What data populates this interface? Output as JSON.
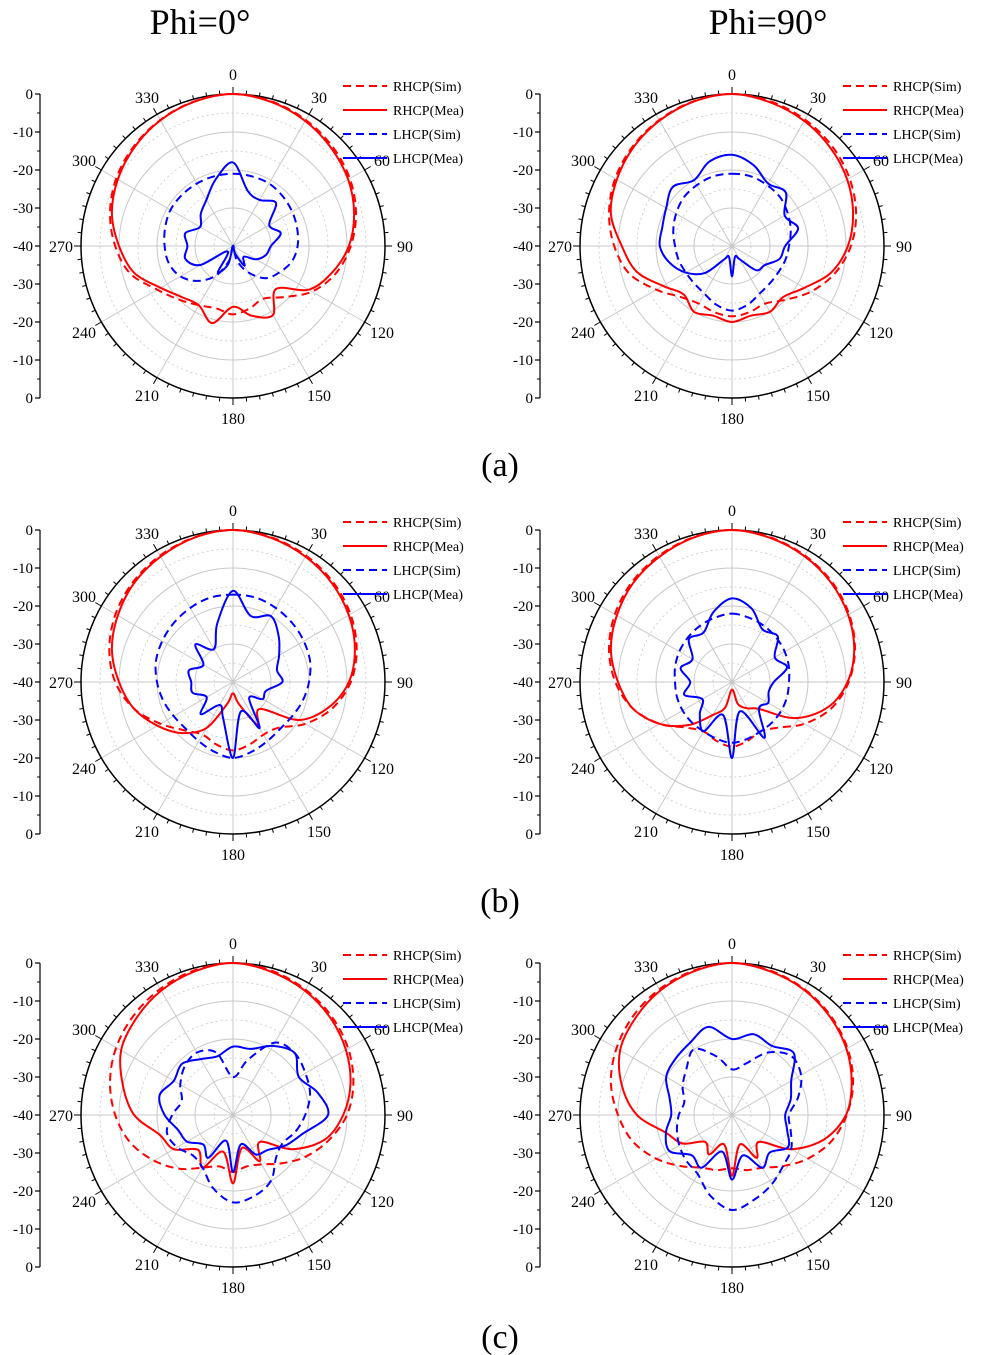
{
  "column_titles": [
    "Phi=0°",
    "Phi=90°"
  ],
  "captions": [
    "(a)",
    "(b)",
    "(c)"
  ],
  "legend_entries": [
    "RHCP(Sim)",
    "RHCP(Mea)",
    "LHCP(Sim)",
    "LHCP(Mea)"
  ],
  "colors": {
    "rhcp": "#ff0000",
    "lhcp": "#0000ff",
    "grid": "#c8c8c8",
    "frame": "#000000"
  },
  "angle_labels": [
    "0",
    "30",
    "60",
    "90",
    "120",
    "150",
    "180",
    "210",
    "240",
    "270",
    "300",
    "330"
  ],
  "radial_tick_labels": [
    "0",
    "-10",
    "-20",
    "-30",
    "-40",
    "-30",
    "-20",
    "-10",
    "0"
  ],
  "chart_data": [
    {
      "type": "polar",
      "panel": "(a)",
      "subtitle": "Phi=0°",
      "rlim": [
        -40,
        0
      ],
      "grid": true,
      "legend": "top-right",
      "theta": [
        0,
        15,
        30,
        45,
        60,
        75,
        90,
        105,
        120,
        135,
        150,
        165,
        180,
        195,
        210,
        225,
        240,
        255,
        270,
        285,
        300,
        315,
        330,
        345,
        360
      ],
      "series": [
        {
          "name": "RHCP(Sim)",
          "style": "dashed",
          "color": "#ff0000",
          "values": [
            0,
            -0.6,
            -1.7,
            -3,
            -4.5,
            -6.5,
            -9,
            -12,
            -16,
            -21,
            -24,
            -23,
            -22,
            -23,
            -22,
            -20,
            -17,
            -12,
            -9,
            -6.5,
            -4.5,
            -3,
            -1.7,
            -0.6,
            0
          ]
        },
        {
          "name": "RHCP(Mea)",
          "style": "solid",
          "color": "#ff0000",
          "values": [
            0,
            -0.8,
            -2,
            -3.5,
            -5,
            -7,
            -9.5,
            -13,
            -17,
            -24,
            -19,
            -21,
            -24,
            -19,
            -22,
            -21,
            -18,
            -13,
            -10,
            -7,
            -5,
            -3.3,
            -1.8,
            -0.7,
            0
          ]
        },
        {
          "name": "LHCP(Sim)",
          "style": "dashed",
          "color": "#0000ff",
          "values": [
            -21,
            -21,
            -21,
            -21.5,
            -22,
            -22.5,
            -23,
            -24,
            -26,
            -28,
            -32,
            -36,
            -40,
            -36,
            -31,
            -27,
            -24,
            -22.5,
            -22,
            -21.5,
            -21,
            -21,
            -21,
            -21,
            -21
          ]
        },
        {
          "name": "LHCP(Mea)",
          "style": "solid",
          "color": "#0000ff",
          "values": [
            -18,
            -25,
            -26,
            -24,
            -29,
            -27,
            -30,
            -31,
            -33,
            -36,
            -34,
            -38,
            -40,
            -35,
            -32,
            -38,
            -30,
            -27,
            -28,
            -27,
            -30,
            -28,
            -26,
            -22,
            -18
          ]
        }
      ]
    },
    {
      "type": "polar",
      "panel": "(a)",
      "subtitle": "Phi=90°",
      "rlim": [
        -40,
        0
      ],
      "grid": true,
      "legend": "top-right",
      "theta": [
        0,
        15,
        30,
        45,
        60,
        75,
        90,
        105,
        120,
        135,
        150,
        165,
        180,
        195,
        210,
        225,
        240,
        255,
        270,
        285,
        300,
        315,
        330,
        345,
        360
      ],
      "series": [
        {
          "name": "RHCP(Sim)",
          "style": "dashed",
          "color": "#ff0000",
          "values": [
            0,
            -0.6,
            -1.6,
            -2.8,
            -4.3,
            -6.2,
            -8.7,
            -12,
            -16,
            -20,
            -22.5,
            -22,
            -21.5,
            -22,
            -22.5,
            -21,
            -17,
            -12,
            -9,
            -6.5,
            -4.5,
            -3,
            -1.7,
            -0.6,
            0
          ]
        },
        {
          "name": "RHCP(Mea)",
          "style": "solid",
          "color": "#ff0000",
          "values": [
            0,
            -0.9,
            -2,
            -3.4,
            -5,
            -7,
            -9.5,
            -13,
            -18,
            -21,
            -20,
            -21,
            -20,
            -21,
            -20,
            -22,
            -19,
            -14,
            -11,
            -7,
            -5,
            -3.3,
            -1.9,
            -0.7,
            0
          ]
        },
        {
          "name": "LHCP(Sim)",
          "style": "dashed",
          "color": "#0000ff",
          "values": [
            -21,
            -21,
            -21.5,
            -22,
            -23,
            -24,
            -25,
            -25.5,
            -26,
            -26,
            -25.5,
            -24,
            -23,
            -24,
            -25.5,
            -26,
            -26,
            -25.5,
            -25,
            -24,
            -23,
            -22,
            -21.5,
            -21,
            -21
          ]
        },
        {
          "name": "LHCP(Mea)",
          "style": "solid",
          "color": "#0000ff",
          "values": [
            -16,
            -18,
            -21,
            -20,
            -24,
            -22,
            -26,
            -27,
            -30,
            -31,
            -36,
            -37,
            -32,
            -37,
            -36,
            -30,
            -26,
            -23,
            -21,
            -21,
            -20,
            -18,
            -20,
            -17,
            -16
          ]
        }
      ]
    },
    {
      "type": "polar",
      "panel": "(b)",
      "subtitle": "Phi=0°",
      "rlim": [
        -40,
        0
      ],
      "grid": true,
      "legend": "top-right",
      "theta": [
        0,
        15,
        30,
        45,
        60,
        75,
        90,
        105,
        120,
        135,
        150,
        165,
        180,
        195,
        210,
        225,
        240,
        255,
        270,
        285,
        300,
        315,
        330,
        345,
        360
      ],
      "series": [
        {
          "name": "RHCP(Sim)",
          "style": "dashed",
          "color": "#ff0000",
          "values": [
            0,
            -0.6,
            -1.6,
            -2.8,
            -4.3,
            -6.3,
            -9,
            -13,
            -18,
            -23,
            -24,
            -23,
            -22,
            -23,
            -24,
            -22,
            -18,
            -13,
            -9,
            -6.3,
            -4.3,
            -2.8,
            -1.6,
            -0.6,
            0
          ]
        },
        {
          "name": "RHCP(Mea)",
          "style": "solid",
          "color": "#ff0000",
          "values": [
            0,
            -0.8,
            -1.9,
            -3.2,
            -4.8,
            -6.8,
            -9.5,
            -14,
            -20,
            -30,
            -27,
            -34,
            -37,
            -34,
            -26,
            -21,
            -17,
            -13,
            -10,
            -7,
            -5,
            -3.2,
            -1.9,
            -0.7,
            0
          ]
        },
        {
          "name": "LHCP(Sim)",
          "style": "dashed",
          "color": "#0000ff",
          "values": [
            -17,
            -17,
            -17.5,
            -18,
            -18.5,
            -19,
            -20,
            -21,
            -22,
            -22.5,
            -22,
            -21,
            -20,
            -21,
            -22,
            -22.5,
            -22,
            -21,
            -20,
            -19,
            -18.5,
            -18,
            -17.5,
            -17,
            -17
          ]
        },
        {
          "name": "LHCP(Mea)",
          "style": "solid",
          "color": "#0000ff",
          "values": [
            -16,
            -22,
            -20,
            -23,
            -26,
            -28,
            -27,
            -31,
            -31,
            -34,
            -26,
            -32,
            -20,
            -30,
            -33,
            -28,
            -32,
            -29,
            -29,
            -28,
            -31,
            -26,
            -30,
            -24,
            -16
          ]
        }
      ]
    },
    {
      "type": "polar",
      "panel": "(b)",
      "subtitle": "Phi=90°",
      "rlim": [
        -40,
        0
      ],
      "grid": true,
      "legend": "top-right",
      "theta": [
        0,
        15,
        30,
        45,
        60,
        75,
        90,
        105,
        120,
        135,
        150,
        165,
        180,
        195,
        210,
        225,
        240,
        255,
        270,
        285,
        300,
        315,
        330,
        345,
        360
      ],
      "series": [
        {
          "name": "RHCP(Sim)",
          "style": "dashed",
          "color": "#ff0000",
          "values": [
            0,
            -0.6,
            -1.6,
            -2.8,
            -4.4,
            -6.5,
            -9.3,
            -13,
            -18,
            -23,
            -25,
            -24,
            -23,
            -24,
            -25,
            -23,
            -18,
            -13,
            -9.3,
            -6.5,
            -4.4,
            -2.8,
            -1.6,
            -0.6,
            0
          ]
        },
        {
          "name": "RHCP(Mea)",
          "style": "solid",
          "color": "#ff0000",
          "values": [
            0,
            -0.8,
            -1.8,
            -3.1,
            -4.7,
            -6.7,
            -9.6,
            -14,
            -21,
            -30,
            -32,
            -34,
            -38,
            -33,
            -30,
            -24,
            -18,
            -13,
            -10,
            -7,
            -5,
            -3.2,
            -1.9,
            -0.7,
            0
          ]
        },
        {
          "name": "LHCP(Sim)",
          "style": "dashed",
          "color": "#0000ff",
          "values": [
            -22,
            -22.5,
            -23,
            -23.5,
            -24,
            -24.5,
            -25,
            -25,
            -25,
            -25,
            -25,
            -24.5,
            -24,
            -24.5,
            -25,
            -25,
            -25,
            -25,
            -25,
            -24.5,
            -24,
            -23.5,
            -23,
            -22.5,
            -22
          ]
        },
        {
          "name": "LHCP(Mea)",
          "style": "solid",
          "color": "#0000ff",
          "values": [
            -18,
            -20,
            -24,
            -23,
            -27,
            -25,
            -29,
            -30,
            -29,
            -30,
            -23,
            -32,
            -20,
            -31,
            -25,
            -28,
            -31,
            -27,
            -29,
            -26,
            -28,
            -24,
            -25,
            -21,
            -18
          ]
        }
      ]
    },
    {
      "type": "polar",
      "panel": "(c)",
      "subtitle": "Phi=0°",
      "rlim": [
        -40,
        0
      ],
      "grid": true,
      "legend": "top-right",
      "theta": [
        0,
        15,
        30,
        45,
        60,
        75,
        90,
        105,
        120,
        135,
        150,
        165,
        180,
        195,
        210,
        225,
        240,
        255,
        270,
        285,
        300,
        315,
        330,
        345,
        360
      ],
      "series": [
        {
          "name": "RHCP(Sim)",
          "style": "dashed",
          "color": "#ff0000",
          "values": [
            0,
            -0.7,
            -1.9,
            -3.3,
            -5,
            -7.2,
            -10,
            -14,
            -18,
            -22,
            -25,
            -26,
            -25,
            -26,
            -24,
            -20,
            -16,
            -12,
            -9,
            -6.5,
            -4.5,
            -3,
            -1.7,
            -0.6,
            0
          ]
        },
        {
          "name": "RHCP(Mea)",
          "style": "solid",
          "color": "#ff0000",
          "values": [
            0,
            -1,
            -2.2,
            -3.8,
            -5.7,
            -8,
            -11,
            -15,
            -22,
            -30,
            -26,
            -31,
            -22,
            -30,
            -24,
            -27,
            -22,
            -20,
            -14,
            -10,
            -6,
            -4,
            -2.2,
            -0.9,
            0
          ]
        },
        {
          "name": "LHCP(Sim)",
          "style": "dashed",
          "color": "#0000ff",
          "values": [
            -30,
            -25,
            -18,
            -17,
            -18,
            -19,
            -21,
            -23,
            -25,
            -24,
            -20,
            -18,
            -17,
            -20,
            -24,
            -25,
            -23,
            -22,
            -24,
            -26,
            -24,
            -22,
            -21,
            -23,
            -30
          ]
        },
        {
          "name": "LHCP(Mea)",
          "style": "solid",
          "color": "#0000ff",
          "values": [
            -22,
            -22,
            -19,
            -17,
            -20,
            -17,
            -15,
            -21,
            -24,
            -27,
            -28,
            -32,
            -25,
            -33,
            -27,
            -29,
            -26,
            -25,
            -22,
            -20,
            -22,
            -21,
            -23,
            -24,
            -22
          ]
        }
      ]
    },
    {
      "type": "polar",
      "panel": "(c)",
      "subtitle": "Phi=90°",
      "rlim": [
        -40,
        0
      ],
      "grid": true,
      "legend": "top-right",
      "theta": [
        0,
        15,
        30,
        45,
        60,
        75,
        90,
        105,
        120,
        135,
        150,
        165,
        180,
        195,
        210,
        225,
        240,
        255,
        270,
        285,
        300,
        315,
        330,
        345,
        360
      ],
      "series": [
        {
          "name": "RHCP(Sim)",
          "style": "dashed",
          "color": "#ff0000",
          "values": [
            0,
            -0.7,
            -1.8,
            -3.2,
            -4.9,
            -7,
            -9.8,
            -13,
            -17,
            -21,
            -24,
            -25,
            -26,
            -25,
            -24,
            -21,
            -17,
            -13,
            -10,
            -7,
            -4.9,
            -3.2,
            -1.8,
            -0.7,
            0
          ]
        },
        {
          "name": "RHCP(Mea)",
          "style": "solid",
          "color": "#ff0000",
          "values": [
            0,
            -0.9,
            -2,
            -3.5,
            -5.2,
            -7.4,
            -10,
            -15,
            -22,
            -30,
            -27,
            -32,
            -24,
            -32,
            -28,
            -30,
            -25,
            -22,
            -15,
            -10,
            -6,
            -4,
            -2.2,
            -0.9,
            0
          ]
        },
        {
          "name": "LHCP(Sim)",
          "style": "dashed",
          "color": "#0000ff",
          "values": [
            -28,
            -26,
            -21,
            -18,
            -19,
            -22,
            -25,
            -24,
            -22,
            -21,
            -19,
            -17,
            -15,
            -18,
            -22,
            -23,
            -24,
            -25,
            -26,
            -27,
            -25,
            -23,
            -20,
            -24,
            -28
          ]
        },
        {
          "name": "LHCP(Mea)",
          "style": "solid",
          "color": "#0000ff",
          "values": [
            -20,
            -18,
            -19,
            -17,
            -22,
            -24,
            -26,
            -25,
            -23,
            -26,
            -24,
            -29,
            -23,
            -30,
            -24,
            -25,
            -21,
            -22,
            -24,
            -23,
            -20,
            -19,
            -18,
            -16,
            -20
          ]
        }
      ]
    }
  ]
}
